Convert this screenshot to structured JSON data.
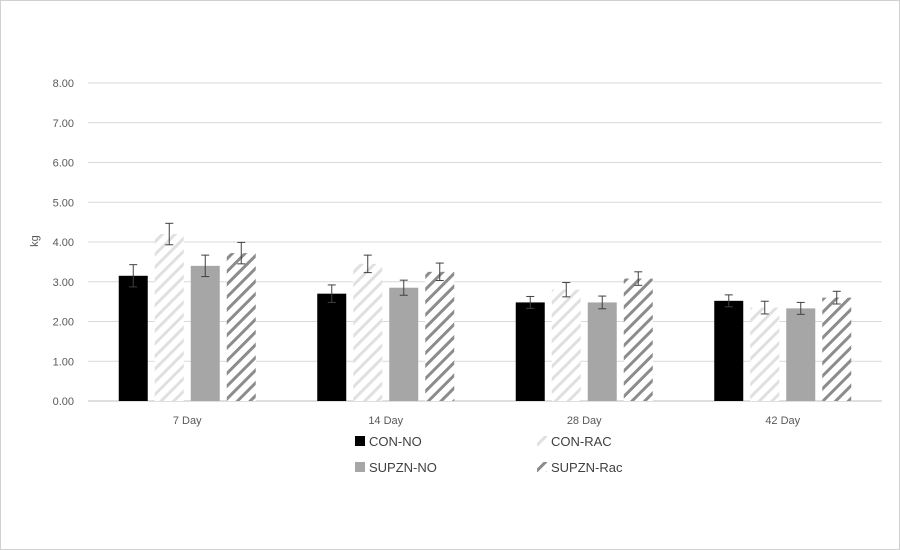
{
  "chart_data": {
    "type": "bar",
    "title": "",
    "xlabel": "",
    "ylabel": "kg",
    "ylim": [
      0,
      8
    ],
    "yticks": [
      "0.00",
      "1.00",
      "2.00",
      "3.00",
      "4.00",
      "5.00",
      "6.00",
      "7.00",
      "8.00"
    ],
    "categories": [
      "7 Day",
      "14 Day",
      "28 Day",
      "42 Day"
    ],
    "grid": true,
    "legend_position": "bottom",
    "series": [
      {
        "name": "CON-NO",
        "values": [
          3.15,
          2.7,
          2.48,
          2.52
        ],
        "errors": [
          0.28,
          0.22,
          0.15,
          0.15
        ],
        "color": "#000000",
        "pattern": "solid"
      },
      {
        "name": "CON-RAC",
        "values": [
          4.2,
          3.45,
          2.8,
          2.35
        ],
        "errors": [
          0.27,
          0.22,
          0.18,
          0.16
        ],
        "color": "#e3e3e3",
        "pattern": "hatch"
      },
      {
        "name": "SUPZN-NO",
        "values": [
          3.4,
          2.85,
          2.48,
          2.33
        ],
        "errors": [
          0.27,
          0.19,
          0.16,
          0.15
        ],
        "color": "#a6a6a6",
        "pattern": "solid"
      },
      {
        "name": "SUPZN-Rac",
        "values": [
          3.72,
          3.25,
          3.08,
          2.6
        ],
        "errors": [
          0.27,
          0.22,
          0.17,
          0.16
        ],
        "color": "#8c8c8c",
        "pattern": "hatch"
      }
    ]
  }
}
